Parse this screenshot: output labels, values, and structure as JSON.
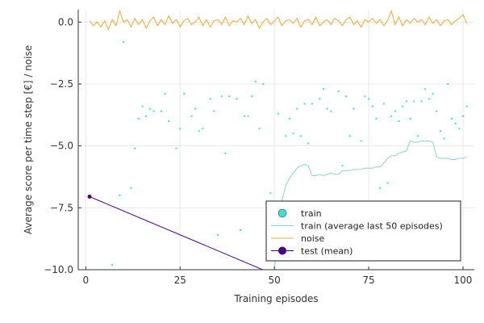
{
  "chart_data": {
    "type": "scatter",
    "xlabel": "Training episodes",
    "ylabel": "Average score per time step [€] / noise",
    "xlim": [
      -2,
      103
    ],
    "ylim": [
      -10,
      0.5
    ],
    "xticks": [
      0,
      25,
      50,
      75,
      100
    ],
    "yticks": [
      0,
      -2.5,
      -5,
      -7.5,
      -10
    ],
    "xtick_labels": [
      "0",
      "25",
      "50",
      "75",
      "100"
    ],
    "ytick_labels": [
      "0.0",
      "−2.5",
      "−5.0",
      "−7.5",
      "−10.0"
    ],
    "grid": true,
    "legend_position": "bottom-right",
    "series": [
      {
        "name": "train",
        "kind": "scatter",
        "color": "#40e0d0",
        "points": [
          [
            1,
            -7.1
          ],
          [
            7,
            -9.8
          ],
          [
            9,
            -7
          ],
          [
            10,
            -0.8
          ],
          [
            12,
            -6.7
          ],
          [
            13,
            -5.1
          ],
          [
            14,
            -3.9
          ],
          [
            15,
            -3.4
          ],
          [
            16,
            -3.8
          ],
          [
            17,
            -3.5
          ],
          [
            18,
            -3.6
          ],
          [
            20,
            -3.6
          ],
          [
            21,
            -2.9
          ],
          [
            22,
            -4
          ],
          [
            24,
            -5.1
          ],
          [
            25,
            -4.3
          ],
          [
            26,
            -2.9
          ],
          [
            28,
            -3.8
          ],
          [
            29,
            -3.5
          ],
          [
            30,
            -4.4
          ],
          [
            31,
            -4.3
          ],
          [
            33,
            -3.1
          ],
          [
            34,
            -3.6
          ],
          [
            35,
            -8.6
          ],
          [
            36,
            -3
          ],
          [
            37,
            -5.3
          ],
          [
            38,
            -3
          ],
          [
            40,
            -3.1
          ],
          [
            41,
            -8.4
          ],
          [
            42,
            -3.8
          ],
          [
            43,
            -3.8
          ],
          [
            44,
            -3
          ],
          [
            45,
            -2.4
          ],
          [
            46,
            -4.3
          ],
          [
            47,
            -2.5
          ],
          [
            49,
            -6.9
          ],
          [
            51,
            -3.7
          ],
          [
            53,
            -4.6
          ],
          [
            54,
            -3.9
          ],
          [
            55,
            -4.5
          ],
          [
            56,
            -3.5
          ],
          [
            57,
            -4.6
          ],
          [
            58,
            -3.3
          ],
          [
            59,
            -4.9
          ],
          [
            60,
            -3.3
          ],
          [
            62,
            -3.1
          ],
          [
            63,
            -2.7
          ],
          [
            64,
            -3.5
          ],
          [
            65,
            -3.6
          ],
          [
            67,
            -2.8
          ],
          [
            68,
            -5.8
          ],
          [
            69,
            -3
          ],
          [
            70,
            -4.6
          ],
          [
            71,
            -3.5
          ],
          [
            73,
            -4.8
          ],
          [
            74,
            -3
          ],
          [
            75,
            -3.1
          ],
          [
            76,
            -3.4
          ],
          [
            77,
            -3.9
          ],
          [
            78,
            -6.7
          ],
          [
            79,
            -3.3
          ],
          [
            80,
            -6.5
          ],
          [
            81,
            -3.8
          ],
          [
            82,
            -3.6
          ],
          [
            83,
            -4
          ],
          [
            84,
            -3.4
          ],
          [
            85,
            -3.2
          ],
          [
            86,
            -3.9
          ],
          [
            87,
            -3.2
          ],
          [
            88,
            -4.6
          ],
          [
            89,
            -3.2
          ],
          [
            90,
            -2.7
          ],
          [
            91,
            -3.1
          ],
          [
            92,
            -2.9
          ],
          [
            93,
            -3.6
          ],
          [
            94,
            -4.4
          ],
          [
            95,
            -4.7
          ],
          [
            96,
            -2.5
          ],
          [
            97,
            -3.9
          ],
          [
            98,
            -4.1
          ],
          [
            99,
            -4.3
          ],
          [
            100,
            -3.8
          ],
          [
            101,
            -3.4
          ]
        ]
      },
      {
        "name": "train (average last 50 episodes)",
        "kind": "line",
        "color": "#8cd3c8",
        "points": [
          [
            50,
            -10
          ],
          [
            51,
            -8.4
          ],
          [
            52,
            -7.2
          ],
          [
            53,
            -6.6
          ],
          [
            54,
            -6.3
          ],
          [
            55,
            -6.1
          ],
          [
            56,
            -5.9
          ],
          [
            57,
            -5.8
          ],
          [
            58,
            -5.75
          ],
          [
            59,
            -5.8
          ],
          [
            60,
            -6.2
          ],
          [
            61,
            -6.2
          ],
          [
            62,
            -6.15
          ],
          [
            63,
            -6.2
          ],
          [
            64,
            -6.15
          ],
          [
            65,
            -6.1
          ],
          [
            66,
            -6.15
          ],
          [
            67,
            -6.15
          ],
          [
            68,
            -6.0
          ],
          [
            69,
            -6.0
          ],
          [
            70,
            -6.0
          ],
          [
            71,
            -5.95
          ],
          [
            72,
            -5.95
          ],
          [
            73,
            -5.95
          ],
          [
            74,
            -5.9
          ],
          [
            75,
            -5.9
          ],
          [
            76,
            -5.9
          ],
          [
            77,
            -5.85
          ],
          [
            78,
            -5.85
          ],
          [
            79,
            -5.7
          ],
          [
            80,
            -5.5
          ],
          [
            81,
            -5.4
          ],
          [
            82,
            -5.4
          ],
          [
            83,
            -5.3
          ],
          [
            84,
            -5.25
          ],
          [
            85,
            -5.2
          ],
          [
            86,
            -4.8
          ],
          [
            87,
            -4.85
          ],
          [
            88,
            -4.85
          ],
          [
            89,
            -4.8
          ],
          [
            90,
            -4.8
          ],
          [
            91,
            -4.8
          ],
          [
            92,
            -4.85
          ],
          [
            93,
            -5.45
          ],
          [
            94,
            -5.5
          ],
          [
            95,
            -5.5
          ],
          [
            96,
            -5.5
          ],
          [
            97,
            -5.55
          ],
          [
            98,
            -5.55
          ],
          [
            99,
            -5.5
          ],
          [
            100,
            -5.5
          ],
          [
            101,
            -5.45
          ]
        ]
      },
      {
        "name": "noise",
        "kind": "line",
        "color": "#f0a830",
        "points": [
          [
            1,
            0.05
          ],
          [
            2,
            -0.15
          ],
          [
            3,
            0.0
          ],
          [
            4,
            -0.2
          ],
          [
            5,
            0.05
          ],
          [
            6,
            -0.3
          ],
          [
            7,
            0.1
          ],
          [
            8,
            -0.15
          ],
          [
            9,
            0.45
          ],
          [
            10,
            0.0
          ],
          [
            11,
            0.1
          ],
          [
            12,
            -0.2
          ],
          [
            13,
            0.15
          ],
          [
            14,
            -0.1
          ],
          [
            15,
            0.1
          ],
          [
            16,
            -0.25
          ],
          [
            17,
            0.05
          ],
          [
            18,
            0.2
          ],
          [
            19,
            -0.15
          ],
          [
            20,
            0.1
          ],
          [
            21,
            -0.1
          ],
          [
            22,
            0.25
          ],
          [
            23,
            -0.05
          ],
          [
            24,
            0.1
          ],
          [
            25,
            -0.2
          ],
          [
            26,
            0.05
          ],
          [
            27,
            0.15
          ],
          [
            28,
            -0.1
          ],
          [
            29,
            0.0
          ],
          [
            30,
            0.2
          ],
          [
            31,
            -0.15
          ],
          [
            32,
            0.1
          ],
          [
            33,
            -0.2
          ],
          [
            34,
            0.05
          ],
          [
            35,
            0.1
          ],
          [
            36,
            -0.1
          ],
          [
            37,
            0.2
          ],
          [
            38,
            -0.15
          ],
          [
            39,
            0.05
          ],
          [
            40,
            0.0
          ],
          [
            41,
            0.15
          ],
          [
            42,
            -0.1
          ],
          [
            43,
            0.25
          ],
          [
            44,
            -0.05
          ],
          [
            45,
            0.1
          ],
          [
            46,
            -0.25
          ],
          [
            47,
            0.0
          ],
          [
            48,
            0.15
          ],
          [
            49,
            -0.1
          ],
          [
            50,
            0.05
          ],
          [
            51,
            0.2
          ],
          [
            52,
            -0.15
          ],
          [
            53,
            0.05
          ],
          [
            54,
            0.1
          ],
          [
            55,
            -0.05
          ],
          [
            56,
            0.15
          ],
          [
            57,
            -0.2
          ],
          [
            58,
            0.05
          ],
          [
            59,
            0.1
          ],
          [
            60,
            -0.1
          ],
          [
            61,
            0.2
          ],
          [
            62,
            -0.15
          ],
          [
            63,
            0.0
          ],
          [
            64,
            0.1
          ],
          [
            65,
            -0.1
          ],
          [
            66,
            0.15
          ],
          [
            67,
            0.05
          ],
          [
            68,
            -0.15
          ],
          [
            69,
            0.1
          ],
          [
            70,
            0.2
          ],
          [
            71,
            -0.1
          ],
          [
            72,
            0.05
          ],
          [
            73,
            -0.2
          ],
          [
            74,
            0.1
          ],
          [
            75,
            0.0
          ],
          [
            76,
            0.15
          ],
          [
            77,
            -0.05
          ],
          [
            78,
            0.1
          ],
          [
            79,
            -0.15
          ],
          [
            80,
            0.05
          ],
          [
            81,
            0.45
          ],
          [
            82,
            -0.1
          ],
          [
            83,
            0.2
          ],
          [
            84,
            -0.15
          ],
          [
            85,
            0.1
          ],
          [
            86,
            -0.05
          ],
          [
            87,
            0.15
          ],
          [
            88,
            0.0
          ],
          [
            89,
            0.1
          ],
          [
            90,
            -0.1
          ],
          [
            91,
            0.2
          ],
          [
            92,
            -0.05
          ],
          [
            93,
            0.1
          ],
          [
            94,
            -0.15
          ],
          [
            95,
            0.05
          ],
          [
            96,
            0.1
          ],
          [
            97,
            -0.1
          ],
          [
            98,
            0.05
          ],
          [
            99,
            0.15
          ],
          [
            100,
            0.3
          ],
          [
            101,
            -0.05
          ]
        ]
      },
      {
        "name": "test (mean)",
        "kind": "line_marker",
        "color": "#4b0082",
        "points": [
          [
            1,
            -7.05
          ],
          [
            50,
            -10.2
          ]
        ]
      }
    ]
  }
}
